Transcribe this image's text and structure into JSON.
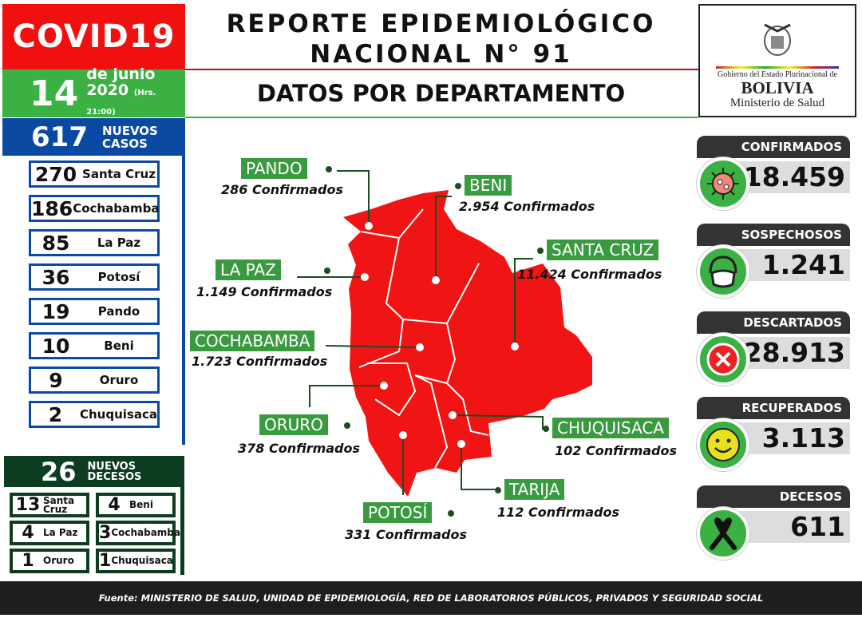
{
  "header": {
    "brand": "COVID19",
    "day": "14",
    "month": "de junio",
    "year": "2020",
    "time": "(Hrs. 21:00)",
    "title1": "REPORTE EPIDEMIOLÓGICO",
    "title2": "NACIONAL N° 91",
    "subtitle": "DATOS POR DEPARTAMENTO"
  },
  "logo": {
    "line1": "Gobierno del Estado Plurinacional de",
    "line2": "BOLIVIA",
    "line3": "Ministerio de Salud"
  },
  "new_cases": {
    "count": "617",
    "label1": "NUEVOS",
    "label2": "CASOS",
    "items": [
      {
        "n": "270",
        "dept": "Santa Cruz"
      },
      {
        "n": "186",
        "dept": "Cochabamba"
      },
      {
        "n": "85",
        "dept": "La Paz"
      },
      {
        "n": "36",
        "dept": "Potosí"
      },
      {
        "n": "19",
        "dept": "Pando"
      },
      {
        "n": "10",
        "dept": "Beni"
      },
      {
        "n": "9",
        "dept": "Oruro"
      },
      {
        "n": "2",
        "dept": "Chuquisaca"
      }
    ]
  },
  "new_deaths": {
    "count": "26",
    "label1": "NUEVOS",
    "label2": "DECESOS",
    "items": [
      {
        "n": "13",
        "dept": "Santa Cruz"
      },
      {
        "n": "4",
        "dept": "Beni"
      },
      {
        "n": "4",
        "dept": "La Paz"
      },
      {
        "n": "3",
        "dept": "Cochabamba"
      },
      {
        "n": "1",
        "dept": "Oruro"
      },
      {
        "n": "1",
        "dept": "Chuquisaca"
      }
    ]
  },
  "map": {
    "color": "#f01414",
    "departments": [
      {
        "name": "PANDO",
        "conf": "286 Confirmados"
      },
      {
        "name": "BENI",
        "conf": "2.954 Confirmados"
      },
      {
        "name": "LA PAZ",
        "conf": "1.149 Confirmados"
      },
      {
        "name": "SANTA CRUZ",
        "conf": "11.424 Confirmados"
      },
      {
        "name": "COCHABAMBA",
        "conf": "1.723 Confirmados"
      },
      {
        "name": "ORURO",
        "conf": "378 Confirmados"
      },
      {
        "name": "CHUQUISACA",
        "conf": "102 Confirmados"
      },
      {
        "name": "TARIJA",
        "conf": "112 Confirmados"
      },
      {
        "name": "POTOSÍ",
        "conf": "331 Confirmados"
      }
    ]
  },
  "totals": [
    {
      "label": "CONFIRMADOS",
      "value": "18.459",
      "icon": "virus-icon"
    },
    {
      "label": "SOSPECHOSOS",
      "value": "1.241",
      "icon": "mask-icon"
    },
    {
      "label": "DESCARTADOS",
      "value": "28.913",
      "icon": "x-circle-icon"
    },
    {
      "label": "RECUPERADOS",
      "value": "3.113",
      "icon": "smile-icon"
    },
    {
      "label": "DECESOS",
      "value": "611",
      "icon": "mourning-ribbon-icon"
    }
  ],
  "footer": "Fuente: MINISTERIO DE SALUD, UNIDAD DE EPIDEMIOLOGÍA, RED DE LABORATORIOS PÚBLICOS, PRIVADOS Y SEGURIDAD SOCIAL"
}
